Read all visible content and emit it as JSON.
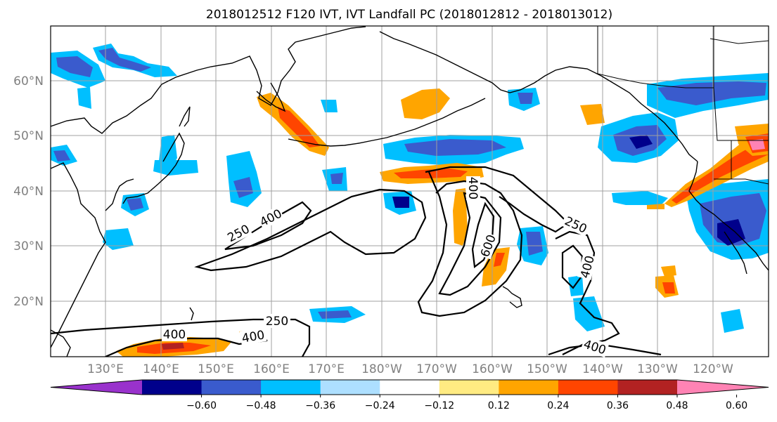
{
  "title": "2018012512 F120 IVT, IVT Landfall PC (2018012812 - 2018013012)",
  "axes": {
    "lat_labels": [
      "60°N",
      "50°N",
      "40°N",
      "30°N",
      "20°N"
    ],
    "lon_labels": [
      "130°E",
      "140°E",
      "150°E",
      "160°E",
      "170°E",
      "180°W",
      "170°W",
      "160°W",
      "150°W",
      "140°W",
      "130°W",
      "120°W"
    ]
  },
  "colorbar": {
    "colors": [
      "#9932CC",
      "#00008B",
      "#3A5BCD",
      "#00BFFF",
      "#ADDFFF",
      "#FFFFFF",
      "#FFEB82",
      "#FFA500",
      "#FF4500",
      "#B22222",
      "#FF83B4"
    ],
    "tick_labels": [
      "-0.60",
      "-0.48",
      "-0.36",
      "-0.24",
      "-0.12",
      "0.12",
      "0.24",
      "0.36",
      "0.48",
      "0.60"
    ]
  },
  "contour_labels": {
    "c250a": "250",
    "c400a": "400",
    "c400b": "400",
    "c600": "600",
    "c250b": "250",
    "c400c": "400",
    "c250c": "250",
    "c400d": "400",
    "c400e": "400",
    "c400f": "400"
  }
}
